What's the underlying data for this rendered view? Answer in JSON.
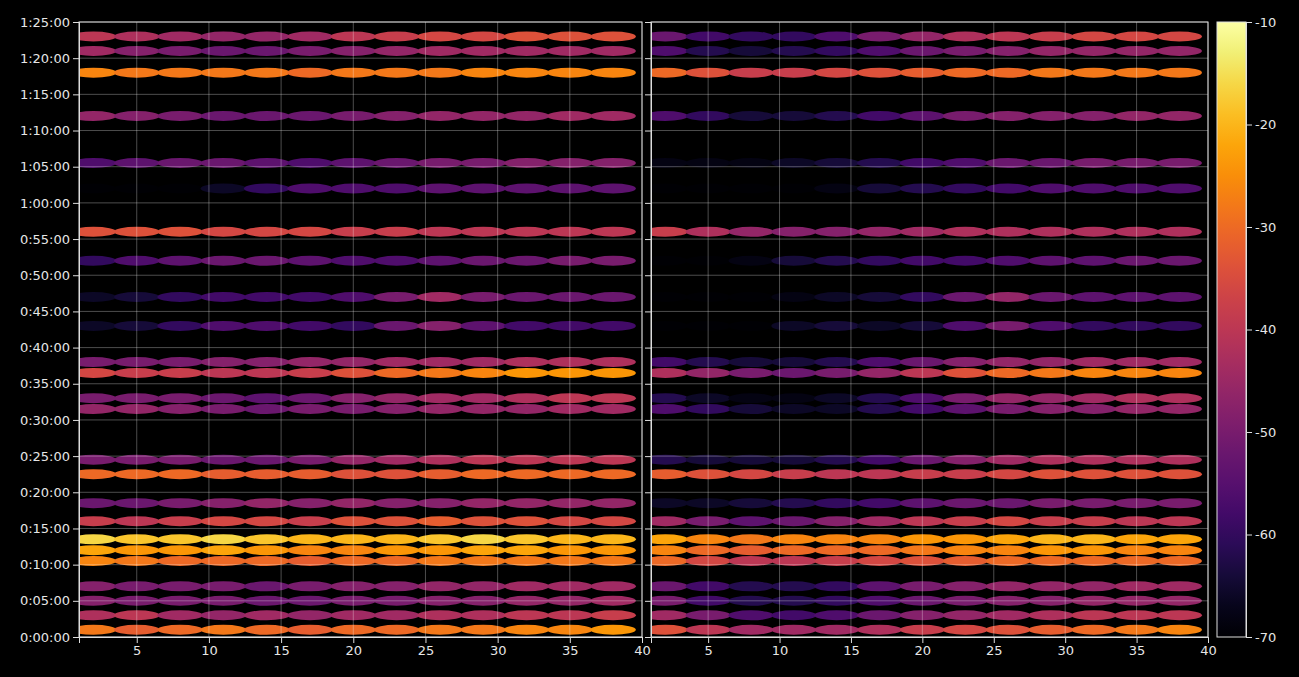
{
  "chart_data": {
    "type": "heatmap",
    "x": [
      2,
      5,
      8,
      11,
      14,
      17,
      20,
      23,
      26,
      29,
      32,
      35,
      38
    ],
    "y": [
      60,
      180,
      300,
      420,
      630,
      720,
      810,
      960,
      1110,
      1350,
      1470,
      1890,
      1980,
      2190,
      2280,
      2580,
      2820,
      3120,
      3360,
      3720,
      3930,
      4320,
      4680,
      4860,
      4980
    ],
    "panels": [
      {
        "values": [
          [
            -28,
            -32,
            -30,
            -28,
            -30,
            -32,
            -30,
            -30,
            -28,
            -28,
            -26,
            -26,
            -24
          ],
          [
            -42,
            -40,
            -44,
            -46,
            -44,
            -46,
            -44,
            -44,
            -42,
            -42,
            -40,
            -40,
            -38
          ],
          [
            -48,
            -50,
            -50,
            -50,
            -52,
            -52,
            -50,
            -50,
            -48,
            -48,
            -46,
            -46,
            -44
          ],
          [
            -48,
            -50,
            -50,
            -50,
            -52,
            -50,
            -48,
            -48,
            -46,
            -46,
            -44,
            -44,
            -44
          ],
          [
            -26,
            -28,
            -30,
            -30,
            -30,
            -32,
            -30,
            -30,
            -28,
            -28,
            -28,
            -28,
            -28
          ],
          [
            -22,
            -24,
            -24,
            -22,
            -24,
            -26,
            -26,
            -24,
            -24,
            -22,
            -22,
            -24,
            -24
          ],
          [
            -16,
            -18,
            -18,
            -16,
            -18,
            -20,
            -20,
            -20,
            -18,
            -16,
            -18,
            -20,
            -20
          ],
          [
            -38,
            -40,
            -38,
            -36,
            -36,
            -38,
            -34,
            -34,
            -32,
            -34,
            -34,
            -36,
            -36
          ],
          [
            -52,
            -52,
            -50,
            -48,
            -46,
            -48,
            -46,
            -48,
            -48,
            -46,
            -46,
            -46,
            -46
          ],
          [
            -30,
            -30,
            -30,
            -32,
            -32,
            -32,
            -34,
            -34,
            -32,
            -30,
            -30,
            -30,
            -30
          ],
          [
            -50,
            -50,
            -50,
            -52,
            -52,
            -50,
            -46,
            -44,
            -42,
            -40,
            -40,
            -40,
            -40
          ],
          [
            -46,
            -46,
            -48,
            -50,
            -52,
            -50,
            -50,
            -48,
            -46,
            -46,
            -46,
            -44,
            -44
          ],
          [
            -50,
            -50,
            -50,
            -52,
            -54,
            -52,
            -48,
            -46,
            -44,
            -44,
            -42,
            -40,
            -40
          ],
          [
            -36,
            -38,
            -38,
            -40,
            -40,
            -38,
            -34,
            -30,
            -28,
            -26,
            -24,
            -24,
            -24
          ],
          [
            -50,
            -50,
            -50,
            -48,
            -48,
            -46,
            -46,
            -44,
            -44,
            -44,
            -42,
            -42,
            -42
          ],
          [
            -66,
            -64,
            -60,
            -56,
            -56,
            -58,
            -60,
            -52,
            -48,
            -54,
            -58,
            -58,
            -58
          ],
          [
            -66,
            -64,
            -60,
            -58,
            -58,
            -58,
            -56,
            -50,
            -44,
            -50,
            -52,
            -52,
            -52
          ],
          [
            -60,
            -56,
            -54,
            -52,
            -52,
            -54,
            -56,
            -56,
            -54,
            -52,
            -52,
            -50,
            -50
          ],
          [
            -34,
            -34,
            -34,
            -36,
            -36,
            -36,
            -38,
            -38,
            -40,
            -40,
            -40,
            -40,
            -40
          ],
          [
            -70,
            -70,
            -70,
            -66,
            -60,
            -56,
            -56,
            -56,
            -54,
            -54,
            -54,
            -54,
            -54
          ],
          [
            -56,
            -54,
            -52,
            -52,
            -54,
            -56,
            -54,
            -52,
            -50,
            -50,
            -48,
            -48,
            -48
          ],
          [
            -46,
            -48,
            -50,
            -52,
            -52,
            -52,
            -50,
            -48,
            -46,
            -46,
            -46,
            -44,
            -44
          ],
          [
            -26,
            -28,
            -28,
            -28,
            -28,
            -30,
            -28,
            -28,
            -28,
            -26,
            -26,
            -26,
            -26
          ],
          [
            -44,
            -48,
            -50,
            -52,
            -52,
            -50,
            -48,
            -46,
            -44,
            -44,
            -44,
            -44,
            -44
          ],
          [
            -40,
            -42,
            -44,
            -46,
            -46,
            -44,
            -40,
            -38,
            -36,
            -36,
            -34,
            -34,
            -34
          ]
        ]
      },
      {
        "values": [
          [
            -34,
            -40,
            -44,
            -44,
            -44,
            -42,
            -38,
            -36,
            -34,
            -32,
            -30,
            -28,
            -26
          ],
          [
            -44,
            -50,
            -56,
            -58,
            -56,
            -52,
            -48,
            -46,
            -44,
            -42,
            -40,
            -40,
            -40
          ],
          [
            -50,
            -58,
            -62,
            -62,
            -60,
            -56,
            -52,
            -50,
            -48,
            -48,
            -46,
            -46,
            -46
          ],
          [
            -52,
            -58,
            -62,
            -62,
            -60,
            -54,
            -50,
            -48,
            -46,
            -46,
            -46,
            -44,
            -44
          ],
          [
            -30,
            -36,
            -40,
            -40,
            -38,
            -36,
            -34,
            -32,
            -30,
            -30,
            -30,
            -30,
            -30
          ],
          [
            -26,
            -30,
            -32,
            -30,
            -30,
            -30,
            -28,
            -26,
            -26,
            -24,
            -24,
            -26,
            -26
          ],
          [
            -22,
            -26,
            -28,
            -26,
            -26,
            -26,
            -24,
            -24,
            -22,
            -20,
            -20,
            -22,
            -22
          ],
          [
            -44,
            -50,
            -54,
            -52,
            -48,
            -44,
            -40,
            -38,
            -36,
            -38,
            -38,
            -40,
            -40
          ],
          [
            -66,
            -66,
            -64,
            -62,
            -60,
            -58,
            -54,
            -52,
            -52,
            -50,
            -50,
            -50,
            -50
          ],
          [
            -32,
            -34,
            -36,
            -38,
            -40,
            -40,
            -38,
            -38,
            -36,
            -34,
            -34,
            -34,
            -34
          ],
          [
            -62,
            -64,
            -64,
            -64,
            -62,
            -58,
            -52,
            -48,
            -44,
            -42,
            -42,
            -42,
            -42
          ],
          [
            -56,
            -60,
            -64,
            -66,
            -66,
            -62,
            -58,
            -54,
            -50,
            -48,
            -48,
            -46,
            -46
          ],
          [
            -62,
            -66,
            -68,
            -68,
            -66,
            -62,
            -56,
            -50,
            -46,
            -46,
            -44,
            -42,
            -42
          ],
          [
            -42,
            -46,
            -50,
            -52,
            -50,
            -46,
            -40,
            -34,
            -30,
            -28,
            -26,
            -26,
            -26
          ],
          [
            -58,
            -62,
            -64,
            -64,
            -62,
            -56,
            -52,
            -48,
            -46,
            -46,
            -44,
            -44,
            -44
          ],
          [
            -70,
            -70,
            -70,
            -66,
            -64,
            -66,
            -64,
            -56,
            -50,
            -56,
            -60,
            -60,
            -60
          ],
          [
            -70,
            -70,
            -70,
            -68,
            -66,
            -64,
            -60,
            -52,
            -46,
            -52,
            -54,
            -54,
            -54
          ],
          [
            -70,
            -70,
            -68,
            -64,
            -62,
            -60,
            -58,
            -58,
            -56,
            -54,
            -54,
            -52,
            -52
          ],
          [
            -38,
            -42,
            -46,
            -48,
            -48,
            -46,
            -44,
            -42,
            -42,
            -42,
            -42,
            -42,
            -42
          ],
          [
            -70,
            -70,
            -70,
            -70,
            -68,
            -64,
            -62,
            -60,
            -58,
            -56,
            -56,
            -56,
            -56
          ],
          [
            -68,
            -68,
            -68,
            -66,
            -64,
            -62,
            -58,
            -56,
            -52,
            -52,
            -50,
            -50,
            -50
          ],
          [
            -56,
            -60,
            -64,
            -64,
            -62,
            -58,
            -54,
            -50,
            -48,
            -48,
            -48,
            -46,
            -46
          ],
          [
            -30,
            -34,
            -38,
            -38,
            -36,
            -34,
            -32,
            -30,
            -30,
            -28,
            -28,
            -28,
            -28
          ],
          [
            -56,
            -62,
            -64,
            -62,
            -60,
            -56,
            -52,
            -50,
            -48,
            -46,
            -46,
            -46,
            -46
          ],
          [
            -52,
            -58,
            -60,
            -60,
            -56,
            -50,
            -46,
            -42,
            -40,
            -38,
            -36,
            -36,
            -36
          ]
        ]
      }
    ],
    "xlim": [
      1,
      40
    ],
    "xticks": [
      5,
      10,
      15,
      20,
      25,
      30,
      35,
      40
    ],
    "ylim": [
      0,
      5100
    ],
    "yticks": [
      {
        "value": 0,
        "label": "0:00:00"
      },
      {
        "value": 300,
        "label": "0:05:00"
      },
      {
        "value": 600,
        "label": "0:10:00"
      },
      {
        "value": 900,
        "label": "0:15:00"
      },
      {
        "value": 1200,
        "label": "0:20:00"
      },
      {
        "value": 1500,
        "label": "0:25:00"
      },
      {
        "value": 1800,
        "label": "0:30:00"
      },
      {
        "value": 2100,
        "label": "0:35:00"
      },
      {
        "value": 2400,
        "label": "0:40:00"
      },
      {
        "value": 2700,
        "label": "0:45:00"
      },
      {
        "value": 3000,
        "label": "0:50:00"
      },
      {
        "value": 3300,
        "label": "0:55:00"
      },
      {
        "value": 3600,
        "label": "1:00:00"
      },
      {
        "value": 3900,
        "label": "1:05:00"
      },
      {
        "value": 4200,
        "label": "1:10:00"
      },
      {
        "value": 4500,
        "label": "1:15:00"
      },
      {
        "value": 4800,
        "label": "1:20:00"
      },
      {
        "value": 5100,
        "label": "1:25:00"
      }
    ],
    "colorbar": {
      "range": [
        -70,
        -10
      ],
      "ticks": [
        -70,
        -60,
        -50,
        -40,
        -30,
        -20,
        -10
      ]
    },
    "grid": true
  }
}
